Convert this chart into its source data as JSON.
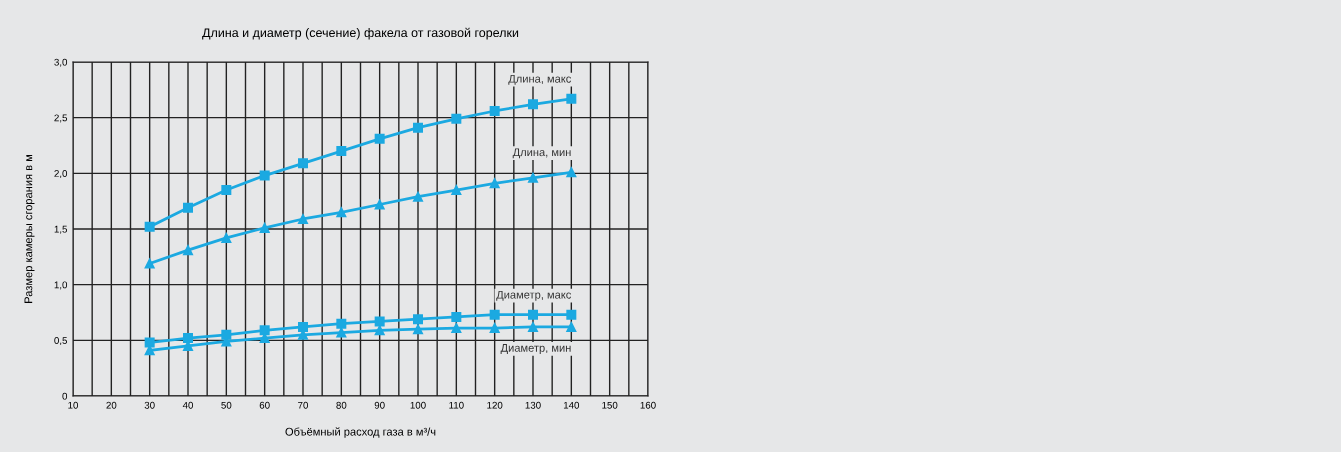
{
  "chart_data": {
    "type": "line",
    "title": "Длина и диаметр (сечение) факела от газовой горелки",
    "xlabel": "Объёмный расход газа в м³/ч",
    "ylabel": "Размер камеры сгорания в м",
    "x": [
      30,
      40,
      50,
      60,
      70,
      80,
      90,
      100,
      110,
      120,
      130,
      140
    ],
    "series": [
      {
        "name": "Длина, макс",
        "color": "#1ba9e1",
        "marker": "square",
        "values": [
          1.52,
          1.69,
          1.85,
          1.98,
          2.09,
          2.2,
          2.31,
          2.41,
          2.49,
          2.56,
          2.62,
          2.67
        ]
      },
      {
        "name": "Длина, мин",
        "color": "#1ba9e1",
        "marker": "triangle",
        "values": [
          1.19,
          1.31,
          1.42,
          1.51,
          1.59,
          1.65,
          1.72,
          1.79,
          1.85,
          1.91,
          1.96,
          2.01
        ]
      },
      {
        "name": "Диаметр, макс",
        "color": "#1ba9e1",
        "marker": "square",
        "values": [
          0.48,
          0.52,
          0.55,
          0.59,
          0.62,
          0.65,
          0.67,
          0.69,
          0.71,
          0.73,
          0.73,
          0.73
        ]
      },
      {
        "name": "Диаметр, мин",
        "color": "#1ba9e1",
        "marker": "triangle",
        "values": [
          0.41,
          0.45,
          0.49,
          0.52,
          0.55,
          0.57,
          0.59,
          0.6,
          0.61,
          0.61,
          0.62,
          0.62
        ]
      }
    ],
    "xlim": [
      10,
      160
    ],
    "xticks": [
      10,
      {
        "value": 15,
        "label": null
      },
      20,
      {
        "value": 25,
        "label": null
      },
      30,
      {
        "value": 35,
        "label": null
      },
      40,
      {
        "value": 45,
        "label": null
      },
      50,
      {
        "value": 55,
        "label": null
      },
      60,
      {
        "value": 65,
        "label": null
      },
      70,
      {
        "value": 75,
        "label": null
      },
      80,
      {
        "value": 85,
        "label": null
      },
      90,
      {
        "value": 95,
        "label": null
      },
      100,
      {
        "value": 105,
        "label": null
      },
      110,
      {
        "value": 115,
        "label": null
      },
      120,
      {
        "value": 125,
        "label": null
      },
      130,
      {
        "value": 135,
        "label": null
      },
      140,
      {
        "value": 145,
        "label": null
      },
      150,
      {
        "value": 155,
        "label": null
      },
      160
    ],
    "ylim": [
      0,
      3
    ],
    "yticks": [
      0,
      {
        "value": 0.5,
        "label": "0,5"
      },
      {
        "value": 1,
        "label": "1,0"
      },
      {
        "value": 1.5,
        "label": "1,5"
      },
      {
        "value": 2,
        "label": "2,0"
      },
      {
        "value": 2.5,
        "label": "2,5"
      },
      {
        "value": 3,
        "label": "3,0"
      }
    ],
    "grid": true,
    "legend": false,
    "line_style": "solid"
  }
}
